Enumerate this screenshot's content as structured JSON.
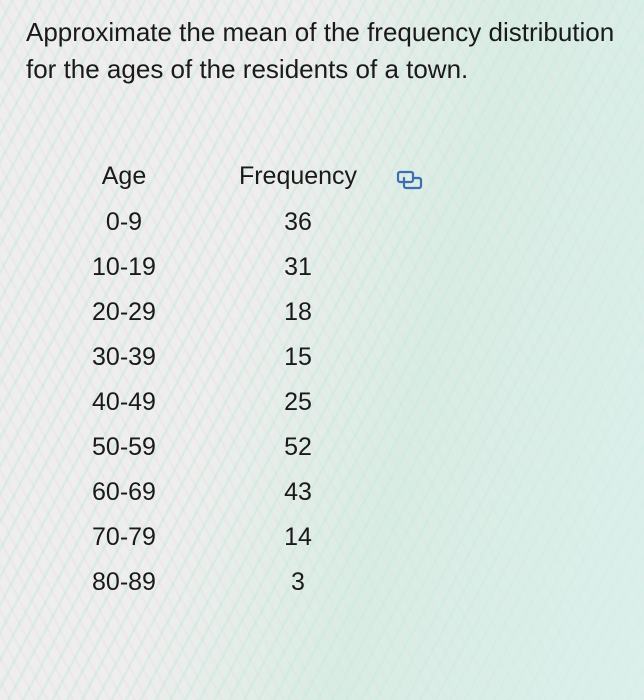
{
  "question": {
    "text": "Approximate the mean of the frequency distribution for the ages of the residents of a town."
  },
  "table": {
    "headers": {
      "age": "Age",
      "frequency": "Frequency"
    },
    "rows": [
      {
        "age": "0-9",
        "frequency": "36"
      },
      {
        "age": "10-19",
        "frequency": "31"
      },
      {
        "age": "20-29",
        "frequency": "18"
      },
      {
        "age": "30-39",
        "frequency": "15"
      },
      {
        "age": "40-49",
        "frequency": "25"
      },
      {
        "age": "50-59",
        "frequency": "52"
      },
      {
        "age": "60-69",
        "frequency": "43"
      },
      {
        "age": "70-79",
        "frequency": "14"
      },
      {
        "age": "80-89",
        "frequency": "3"
      }
    ]
  },
  "icons": {
    "copy": "copy-table-icon"
  },
  "colors": {
    "text": "#1a1a1a",
    "icon": "#3d6fb0"
  }
}
